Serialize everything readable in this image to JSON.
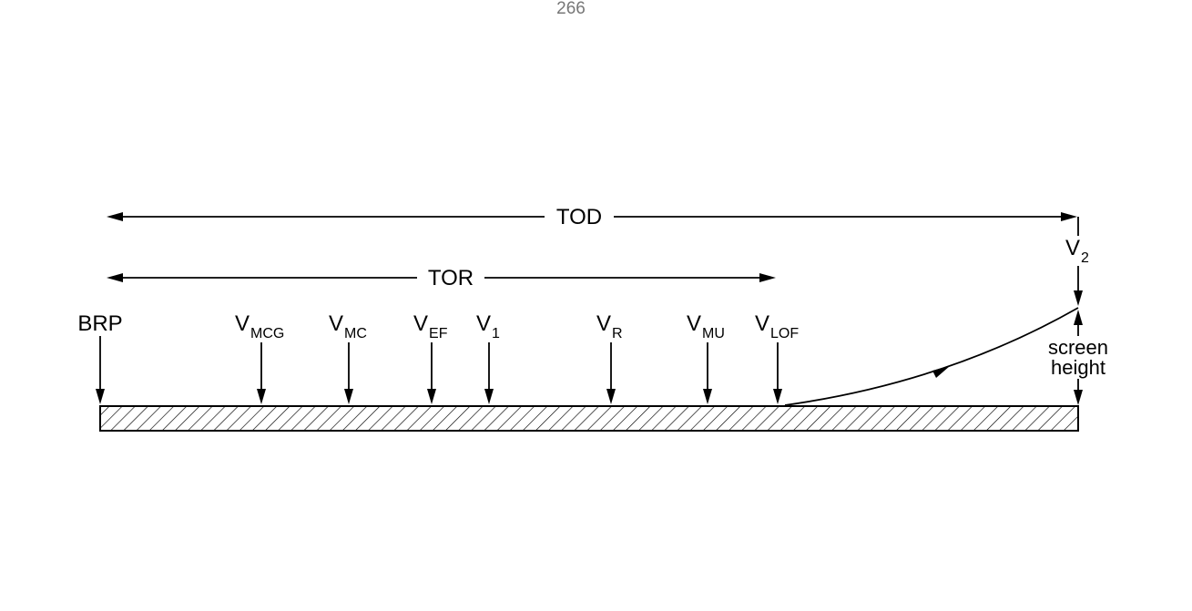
{
  "page_number": "266",
  "distances": {
    "tod": "TOD",
    "tor": "TOR"
  },
  "runway_markers": {
    "brp": "BRP",
    "v_mcg": {
      "main": "V",
      "sub": "MCG"
    },
    "v_mc": {
      "main": "V",
      "sub": "MC"
    },
    "v_ef": {
      "main": "V",
      "sub": "EF"
    },
    "v_1": {
      "main": "V",
      "sub": "1"
    },
    "v_r": {
      "main": "V",
      "sub": "R"
    },
    "v_mu": {
      "main": "V",
      "sub": "MU"
    },
    "v_lof": {
      "main": "V",
      "sub": "LOF"
    }
  },
  "end_marker": {
    "v_2": {
      "main": "V",
      "sub": "2"
    },
    "screen_height_line1": "screen",
    "screen_height_line2": "height"
  }
}
